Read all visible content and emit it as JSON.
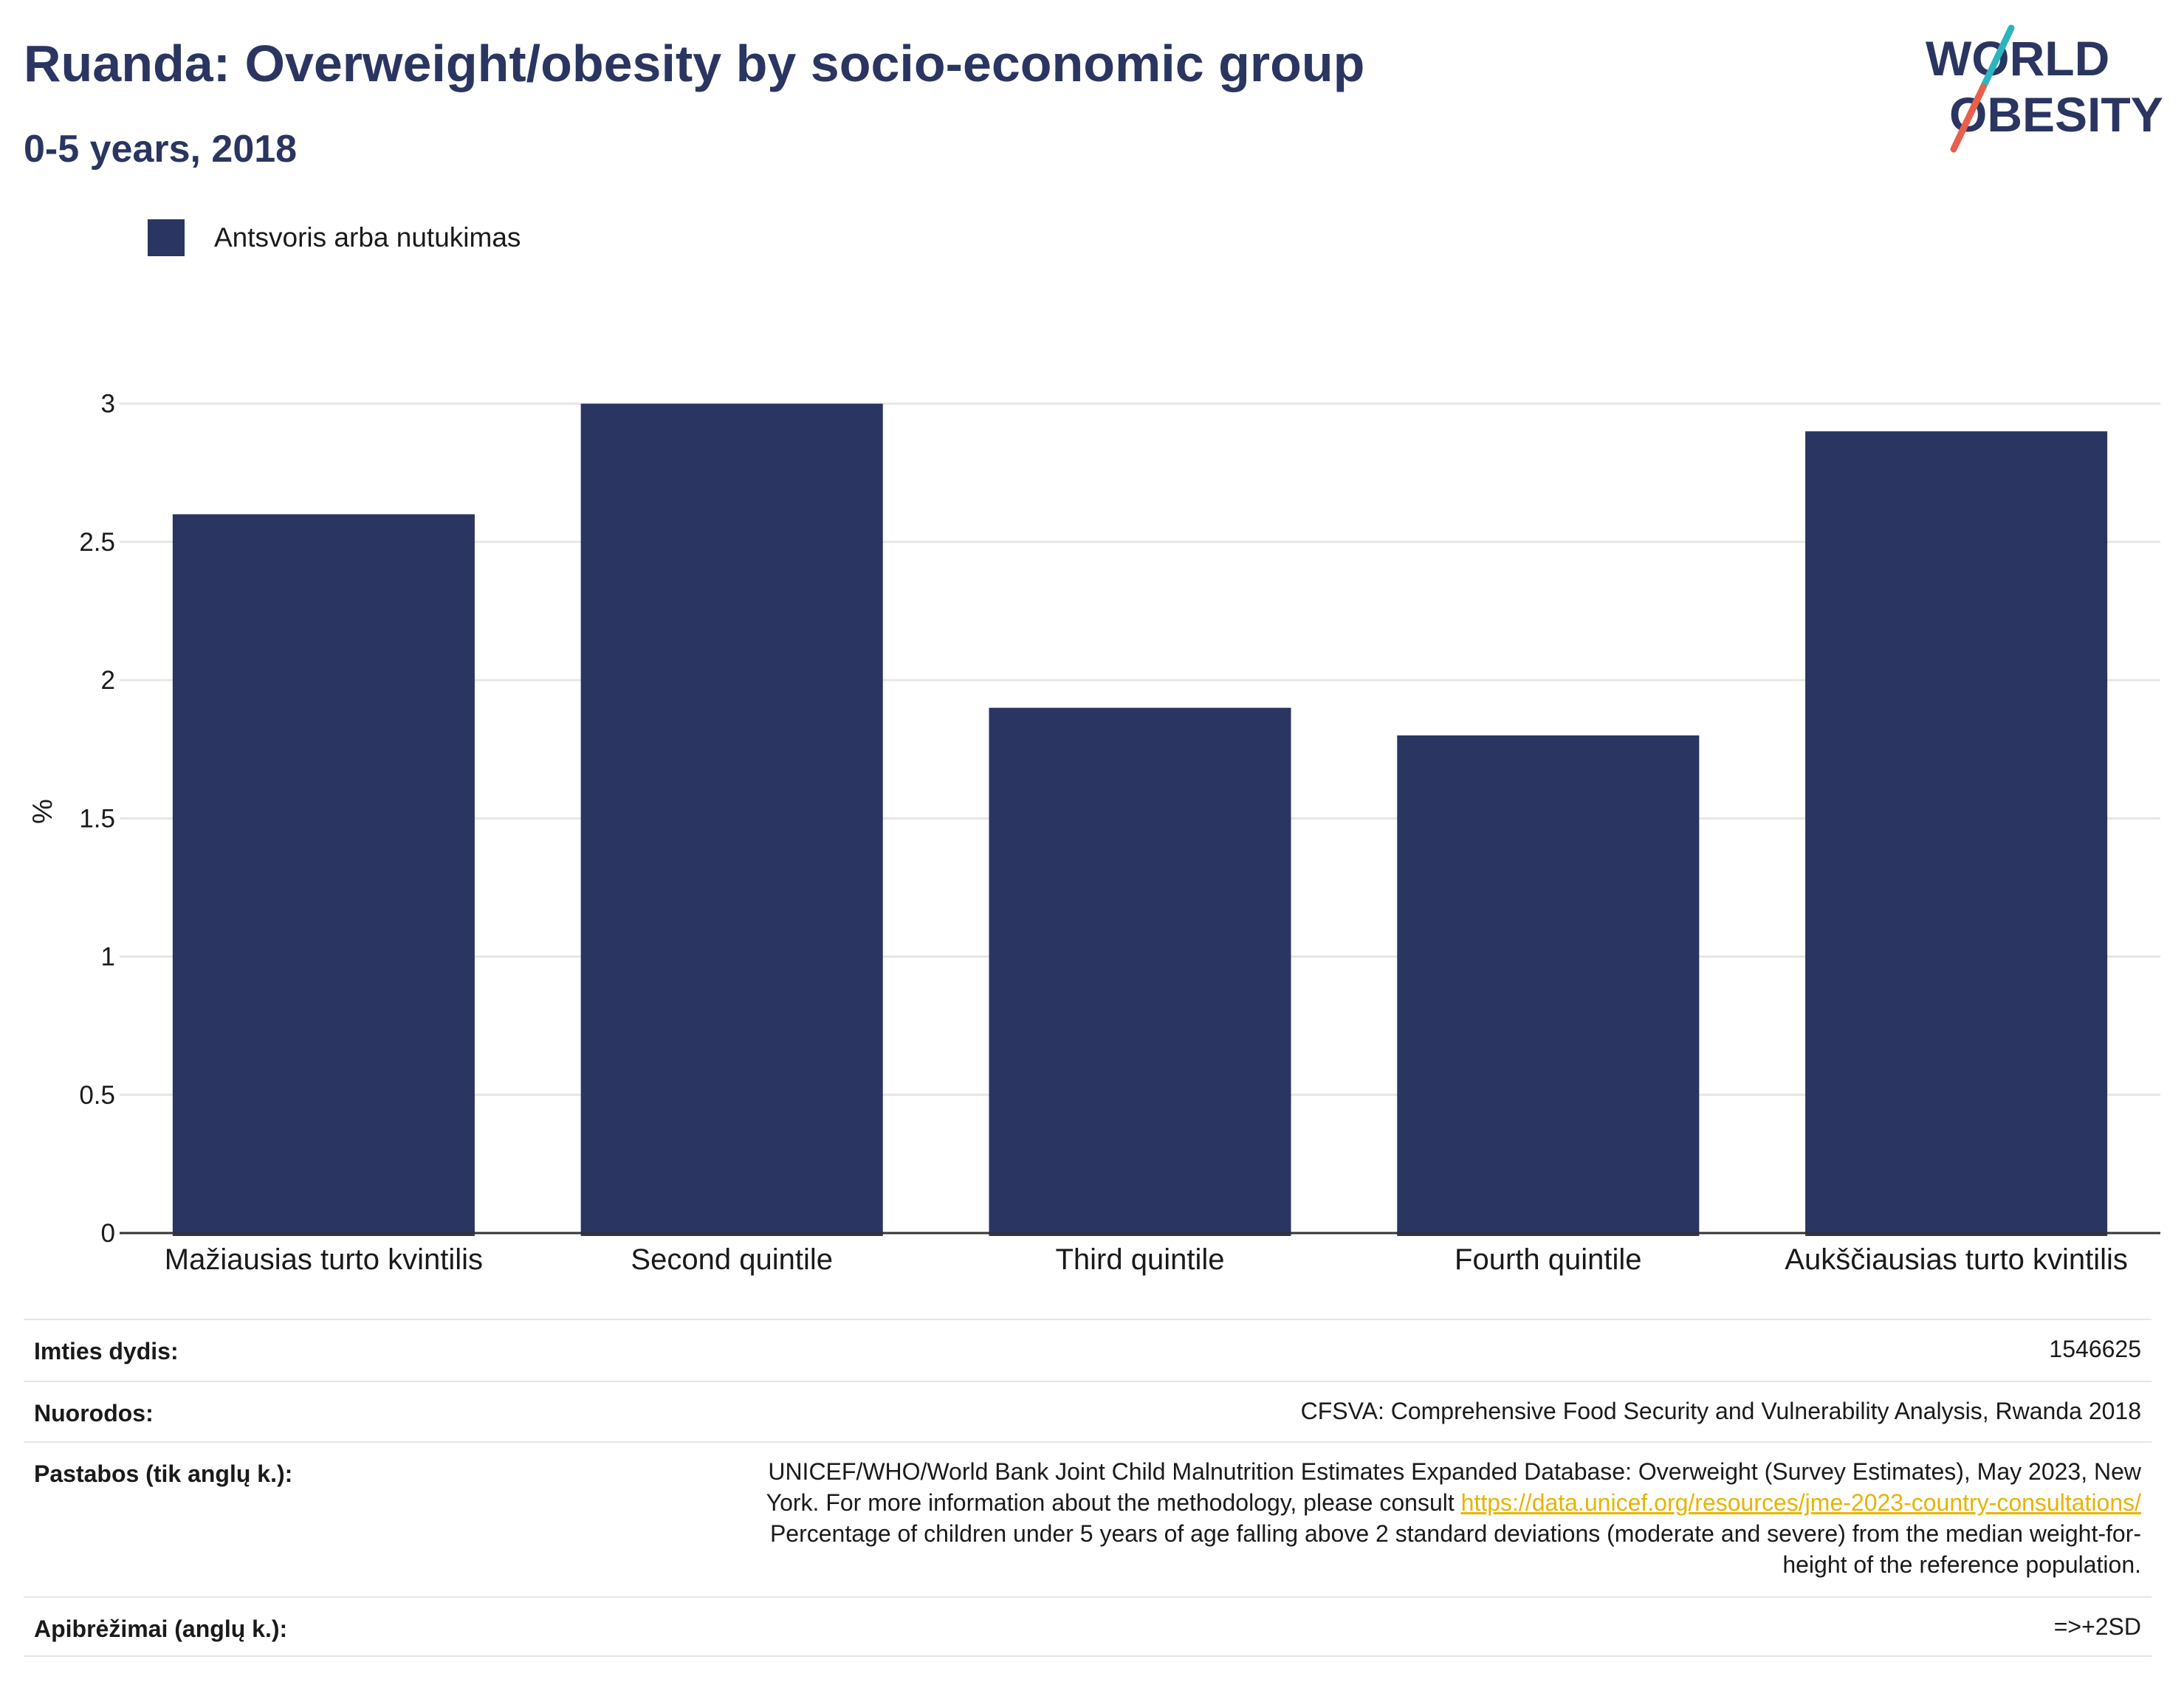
{
  "header": {
    "title": "Ruanda: Overweight/obesity by socio-economic group",
    "subtitle": "0-5 years, 2018"
  },
  "logo": {
    "line1": "WORLD",
    "line2": "OBESITY",
    "colors": {
      "text": "#2a3561",
      "slash_teal": "#2bb5be",
      "slash_red": "#e8604c"
    }
  },
  "colors": {
    "bar": "#2a3561",
    "grid": "#e6e6e6",
    "axis": "#333333",
    "link": "#e6b400"
  },
  "chart_data": {
    "type": "bar",
    "categories": [
      "Mažiausias turto kvintilis",
      "Second quintile",
      "Third quintile",
      "Fourth quintile",
      "Aukščiausias turto kvintilis"
    ],
    "series": [
      {
        "name": "Antsvoris arba nutukimas",
        "values": [
          2.6,
          3.0,
          1.9,
          1.8,
          2.9
        ]
      }
    ],
    "ylabel": "%",
    "ylim": [
      0,
      3.05
    ],
    "yticks": [
      0,
      0.5,
      1,
      1.5,
      2,
      2.5,
      3
    ],
    "ytick_labels": [
      "0",
      "0.5",
      "1",
      "1.5",
      "2",
      "2.5",
      "3"
    ],
    "grid": true,
    "legend_position": "top-left"
  },
  "info": {
    "sample": {
      "label": "Imties dydis:",
      "value": "1546625"
    },
    "references": {
      "label": "Nuorodos:",
      "value": "CFSVA: Comprehensive Food Security and Vulnerability Analysis, Rwanda 2018"
    },
    "notes": {
      "label": "Pastabos (tik anglų k.):",
      "text1": "UNICEF/WHO/World Bank Joint Child Malnutrition Estimates Expanded Database: Overweight (Survey Estimates), May 2023, New",
      "text2": "York. For more information about the methodology, please consult ",
      "link": "https://data.unicef.org/resources/jme-2023-country-consultations/",
      "text3": "Percentage of children under 5 years of age falling above 2 standard deviations (moderate and severe) from the median weight-for-",
      "text4": "height of the reference population."
    },
    "definitions": {
      "label": "Apibrėžimai (anglų k.):",
      "value": "=>+2SD"
    }
  }
}
